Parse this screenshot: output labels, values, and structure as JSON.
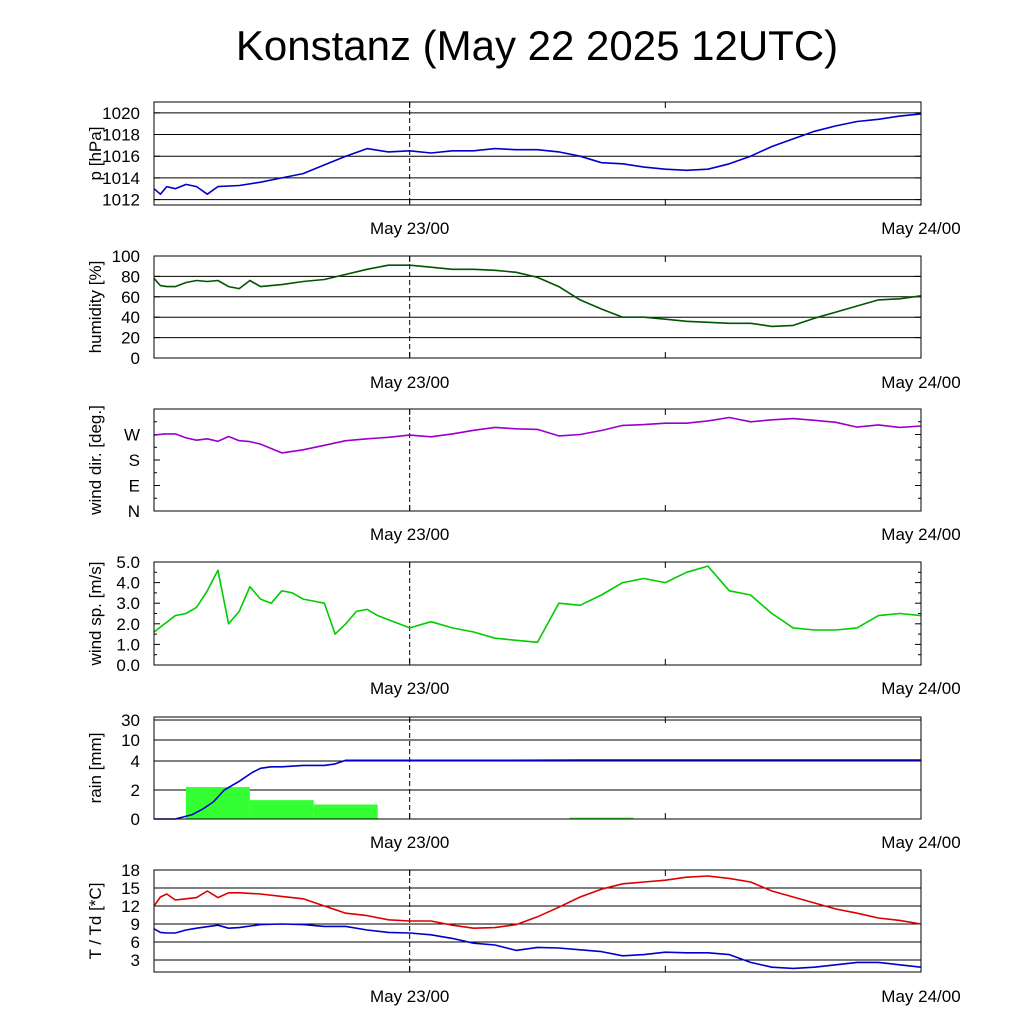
{
  "title": "Konstanz (May 22 2025 12UTC)",
  "chart_data": [
    {
      "type": "line",
      "ylabel": "p [hPa]",
      "ylim": [
        1011.5,
        1021
      ],
      "yticks": [
        1012,
        1014,
        1016,
        1018,
        1020
      ],
      "yticklabels": [
        "1012",
        "1014",
        "1016",
        "1018",
        "1020"
      ],
      "xlim": [
        0,
        36
      ],
      "xticklabels": [
        {
          "x": 12,
          "label": "May 23/00"
        },
        {
          "x": 36,
          "label": "May 24/00"
        }
      ],
      "grid": true,
      "series": [
        {
          "color": "#0000cc",
          "x": [
            0,
            0.3,
            0.6,
            1,
            1.5,
            2,
            2.5,
            3,
            4,
            5,
            6,
            7,
            8,
            9,
            10,
            11,
            12,
            13,
            14,
            15,
            16,
            17,
            18,
            19,
            20,
            21,
            22,
            23,
            24,
            25,
            26,
            27,
            28,
            29,
            30,
            31,
            32,
            33,
            34,
            35,
            36
          ],
          "y": [
            1013,
            1012.5,
            1013.2,
            1013,
            1013.4,
            1013.2,
            1012.5,
            1013.2,
            1013.3,
            1013.6,
            1014,
            1014.4,
            1015.2,
            1016,
            1016.7,
            1016.4,
            1016.5,
            1016.3,
            1016.5,
            1016.5,
            1016.7,
            1016.6,
            1016.6,
            1016.4,
            1016,
            1015.4,
            1015.3,
            1015,
            1014.8,
            1014.7,
            1014.8,
            1015.3,
            1016,
            1016.9,
            1017.6,
            1018.3,
            1018.8,
            1019.2,
            1019.4,
            1019.7,
            1019.9
          ]
        }
      ]
    },
    {
      "type": "line",
      "ylabel": "humidity [%]",
      "ylim": [
        0,
        100
      ],
      "yticks": [
        0,
        20,
        40,
        60,
        80,
        100
      ],
      "yticklabels": [
        "0",
        "20",
        "40",
        "60",
        "80",
        "100"
      ],
      "xlim": [
        0,
        36
      ],
      "xticklabels": [
        {
          "x": 12,
          "label": "May 23/00"
        },
        {
          "x": 36,
          "label": "May 24/00"
        }
      ],
      "grid": true,
      "series": [
        {
          "color": "#005500",
          "x": [
            0,
            0.3,
            0.6,
            1,
            1.5,
            2,
            2.5,
            3,
            3.5,
            4,
            4.5,
            5,
            6,
            7,
            8,
            9,
            10,
            11,
            12,
            13,
            14,
            15,
            16,
            17,
            18,
            19,
            20,
            21,
            22,
            23,
            24,
            25,
            26,
            27,
            28,
            29,
            30,
            31,
            32,
            33,
            34,
            35,
            36
          ],
          "y": [
            78,
            71,
            70,
            70,
            74,
            76,
            75,
            76,
            70,
            68,
            76,
            70,
            72,
            75,
            77,
            82,
            87,
            91,
            91,
            89,
            87,
            87,
            86,
            84,
            79,
            70,
            57,
            48,
            40,
            40,
            38,
            36,
            35,
            34,
            34,
            31,
            32,
            39,
            45,
            51,
            57,
            58,
            61
          ]
        }
      ]
    },
    {
      "type": "line",
      "ylabel": "wind dir. [deg.]",
      "ylim": [
        0,
        360
      ],
      "yticks": [
        0,
        90,
        180,
        270
      ],
      "yticklabels": [
        "N",
        "E",
        "S",
        "W"
      ],
      "xlim": [
        0,
        36
      ],
      "xticklabels": [
        {
          "x": 12,
          "label": "May 23/00"
        },
        {
          "x": 36,
          "label": "May 24/00"
        }
      ],
      "grid": false,
      "series": [
        {
          "color": "#9900cc",
          "x": [
            0,
            0.5,
            1,
            1.5,
            2,
            2.5,
            3,
            3.5,
            4,
            4.5,
            5,
            6,
            7,
            8,
            9,
            10,
            11,
            12,
            13,
            14,
            15,
            16,
            17,
            18,
            19,
            20,
            21,
            22,
            23,
            24,
            25,
            26,
            27,
            28,
            29,
            30,
            31,
            32,
            33,
            34,
            35,
            36
          ],
          "y": [
            268,
            272,
            272,
            258,
            250,
            255,
            246,
            263,
            248,
            245,
            236,
            205,
            216,
            232,
            248,
            255,
            260,
            268,
            262,
            272,
            285,
            295,
            290,
            288,
            265,
            270,
            284,
            302,
            305,
            310,
            310,
            318,
            330,
            315,
            322,
            326,
            320,
            313,
            296,
            304,
            295,
            300
          ]
        }
      ]
    },
    {
      "type": "line",
      "ylabel": "wind sp. [m/s]",
      "ylim": [
        0,
        5
      ],
      "yticks": [
        0,
        1,
        2,
        3,
        4,
        5
      ],
      "yticklabels": [
        "0.0",
        "1.0",
        "2.0",
        "3.0",
        "4.0",
        "5.0"
      ],
      "xlim": [
        0,
        36
      ],
      "xticklabels": [
        {
          "x": 12,
          "label": "May 23/00"
        },
        {
          "x": 36,
          "label": "May 24/00"
        }
      ],
      "grid": false,
      "series": [
        {
          "color": "#00cc00",
          "x": [
            0,
            0.5,
            1,
            1.5,
            2,
            2.5,
            3,
            3.5,
            4,
            4.5,
            5,
            5.5,
            6,
            6.5,
            7,
            7.5,
            8,
            8.5,
            9,
            9.5,
            10,
            10.5,
            11,
            11.5,
            12,
            13,
            14,
            15,
            16,
            17,
            18,
            19,
            20,
            21,
            22,
            23,
            24,
            25,
            26,
            27,
            28,
            29,
            30,
            31,
            32,
            33,
            34,
            35,
            36
          ],
          "y": [
            1.6,
            2,
            2.4,
            2.5,
            2.8,
            3.6,
            4.6,
            2,
            2.6,
            3.8,
            3.2,
            3,
            3.6,
            3.5,
            3.2,
            3.1,
            3.0,
            1.5,
            2,
            2.6,
            2.7,
            2.4,
            2.2,
            2,
            1.8,
            2.1,
            1.8,
            1.6,
            1.3,
            1.2,
            1.1,
            3,
            2.9,
            3.4,
            4.0,
            4.2,
            4.0,
            4.5,
            4.8,
            3.6,
            3.4,
            2.5,
            1.8,
            1.7,
            1.7,
            1.8,
            2.4,
            2.5,
            2.4
          ]
        }
      ]
    },
    {
      "type": "bar",
      "ylabel": "rain [mm]",
      "scale": "nonlinear",
      "yticks": [
        0,
        2,
        4,
        10,
        30
      ],
      "yticklabels": [
        "0",
        "2",
        "4",
        "10",
        "30"
      ],
      "xlim": [
        0,
        36
      ],
      "xticklabels": [
        {
          "x": 12,
          "label": "May 23/00"
        },
        {
          "x": 36,
          "label": "May 24/00"
        }
      ],
      "grid": true,
      "bars": [
        {
          "x0": 1.5,
          "x1": 4.5,
          "value": 2.2
        },
        {
          "x0": 4.5,
          "x1": 7.5,
          "value": 1.3
        },
        {
          "x0": 7.5,
          "x1": 10.5,
          "value": 1.0
        },
        {
          "x0": 19.5,
          "x1": 22.5,
          "value": 0.1
        }
      ],
      "bar_color": "#33ff33",
      "series": [
        {
          "color": "#0000cc",
          "x": [
            0,
            1,
            1.8,
            2.3,
            2.8,
            3.3,
            4,
            4.6,
            5,
            5.5,
            6,
            7,
            8,
            8.5,
            9,
            10,
            12,
            16,
            20,
            24,
            28,
            32,
            36
          ],
          "y": [
            0,
            0,
            0.3,
            0.7,
            1.2,
            2,
            2.6,
            3.2,
            3.5,
            3.6,
            3.6,
            3.7,
            3.7,
            3.8,
            4.2,
            4.2,
            4.2,
            4.2,
            4.3,
            4.3,
            4.3,
            4.3,
            4.3
          ]
        }
      ]
    },
    {
      "type": "line",
      "ylabel": "T / Td [*C]",
      "ylim": [
        1,
        18
      ],
      "yticks": [
        3,
        6,
        9,
        12,
        15,
        18
      ],
      "yticklabels": [
        "3",
        "6",
        "9",
        "12",
        "15",
        "18"
      ],
      "xlim": [
        0,
        36
      ],
      "xticklabels": [
        {
          "x": 12,
          "label": "May 23/00"
        },
        {
          "x": 36,
          "label": "May 24/00"
        }
      ],
      "grid": true,
      "series": [
        {
          "color": "#dd0000",
          "x": [
            0,
            0.3,
            0.6,
            1,
            1.5,
            2,
            2.5,
            3,
            3.5,
            4,
            5,
            6,
            7,
            8,
            9,
            10,
            11,
            12,
            13,
            14,
            15,
            16,
            17,
            18,
            19,
            20,
            21,
            22,
            23,
            24,
            25,
            26,
            27,
            28,
            29,
            30,
            31,
            32,
            33,
            34,
            35,
            36
          ],
          "y": [
            12,
            13.5,
            14,
            13,
            13.2,
            13.4,
            14.5,
            13.4,
            14.2,
            14.2,
            14,
            13.6,
            13.2,
            12,
            10.8,
            10.4,
            9.7,
            9.5,
            9.5,
            8.8,
            8.3,
            8.4,
            8.9,
            10.2,
            11.8,
            13.5,
            14.8,
            15.7,
            16,
            16.3,
            16.8,
            17,
            16.6,
            16,
            14.5,
            13.5,
            12.5,
            11.5,
            10.8,
            10,
            9.6,
            9
          ]
        },
        {
          "color": "#0000cc",
          "x": [
            0,
            0.3,
            0.6,
            1,
            1.5,
            2,
            3,
            3.5,
            4,
            5,
            6,
            7,
            8,
            9,
            10,
            11,
            12,
            13,
            14,
            15,
            16,
            17,
            18,
            19,
            20,
            21,
            22,
            23,
            24,
            25,
            26,
            27,
            28,
            29,
            30,
            31,
            32,
            33,
            34,
            35,
            36
          ],
          "y": [
            8.2,
            7.6,
            7.5,
            7.5,
            8,
            8.3,
            8.8,
            8.3,
            8.4,
            8.9,
            9,
            8.9,
            8.6,
            8.6,
            8,
            7.6,
            7.5,
            7.2,
            6.6,
            5.8,
            5.5,
            4.6,
            5.1,
            5,
            4.7,
            4.4,
            3.7,
            3.9,
            4.3,
            4.2,
            4.2,
            3.9,
            2.6,
            1.8,
            1.6,
            1.8,
            2.2,
            2.6,
            2.6,
            2.2,
            1.8
          ]
        }
      ]
    }
  ]
}
